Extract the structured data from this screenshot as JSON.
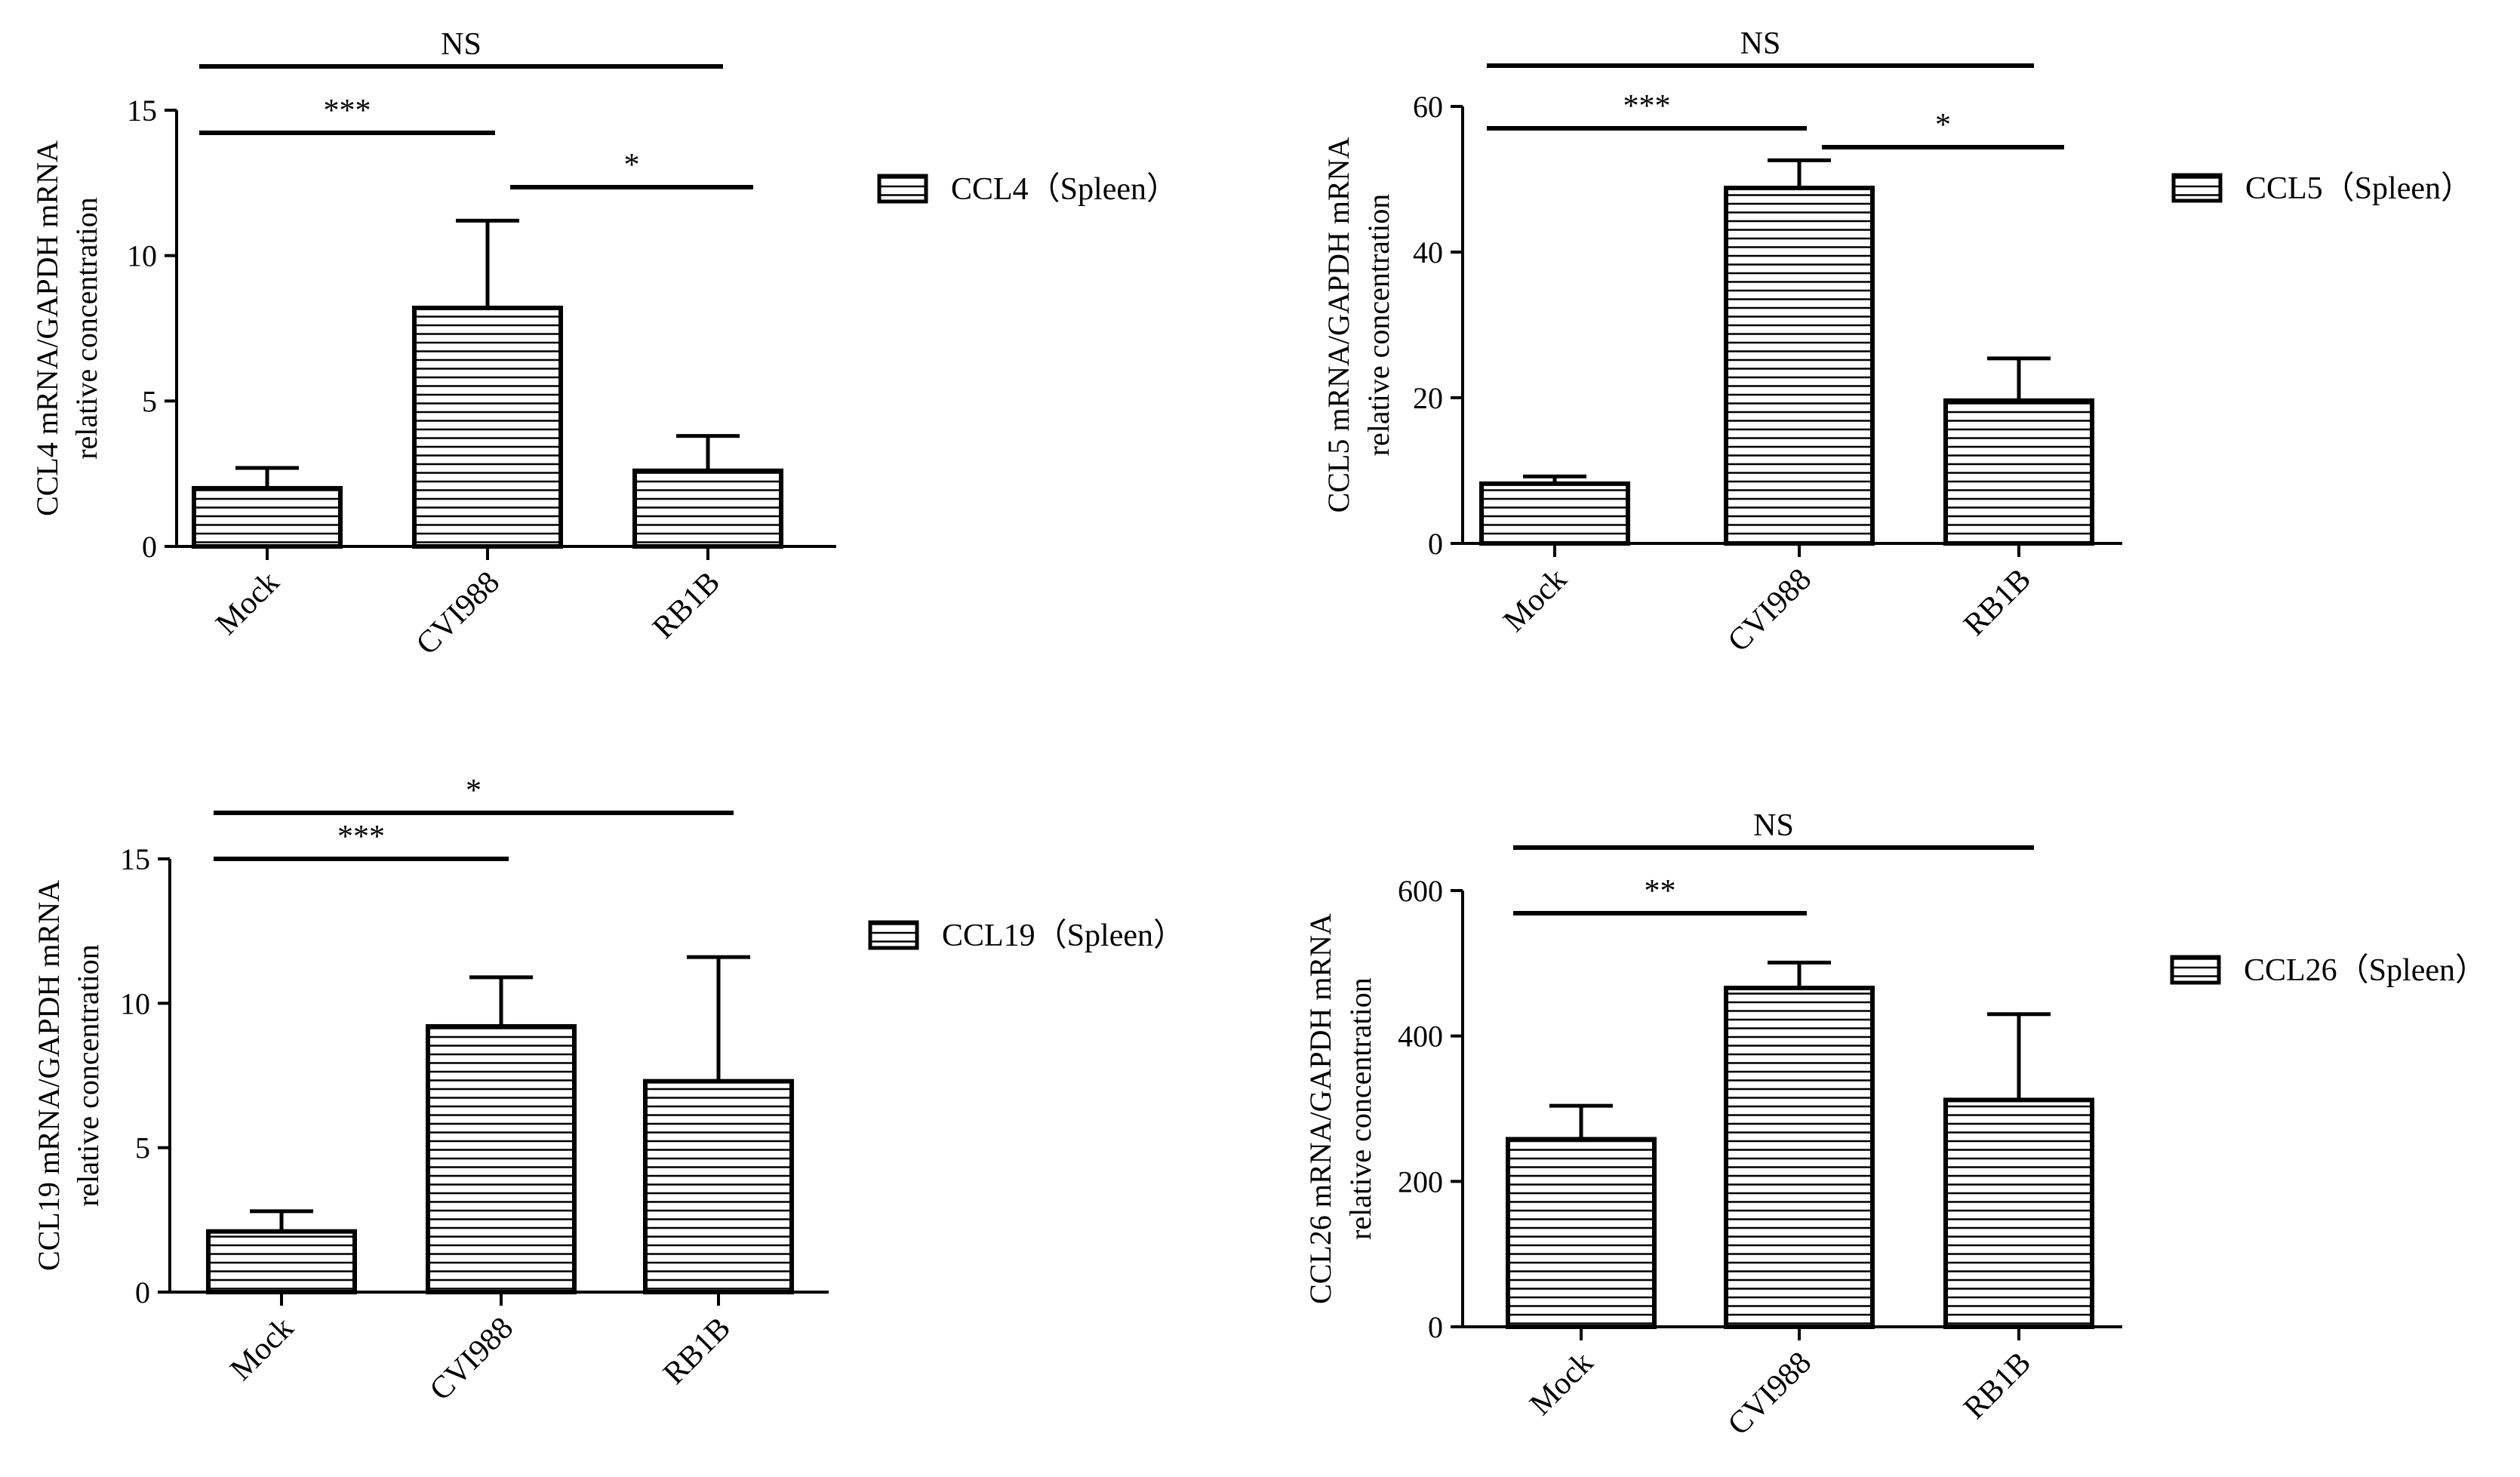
{
  "figure": {
    "hatch_color": "#000000",
    "bar_fill": "#ffffff",
    "line_color": "#000000"
  },
  "chart_data": [
    {
      "type": "bar",
      "title": "",
      "categories": [
        "Mock",
        "CVI988",
        "RB1B"
      ],
      "values": [
        2.0,
        8.2,
        2.6
      ],
      "errors": [
        0.7,
        3.0,
        1.2
      ],
      "ylabel_line1": "CCL4 mRNA/GAPDH mRNA",
      "ylabel_line2": "relative concentration",
      "xlabel": "",
      "ylim": [
        0,
        15
      ],
      "yticks": [
        0,
        5,
        10,
        15
      ],
      "legend": "CCL4（Spleen）",
      "legend_position": "right",
      "significance": [
        {
          "from": 0,
          "to": 2,
          "label": "NS",
          "level": 1
        },
        {
          "from": 0,
          "to": 1,
          "label": "***",
          "level": 0
        },
        {
          "from": 1,
          "to": 2,
          "label": "*",
          "level": -1
        }
      ]
    },
    {
      "type": "bar",
      "title": "",
      "categories": [
        "Mock",
        "CVI988",
        "RB1B"
      ],
      "values": [
        8.2,
        48.8,
        19.6
      ],
      "errors": [
        1.0,
        3.8,
        5.8
      ],
      "ylabel_line1": "CCL5 mRNA/GAPDH mRNA",
      "ylabel_line2": "relative concentration",
      "xlabel": "",
      "ylim": [
        0,
        60
      ],
      "yticks": [
        0,
        20,
        40,
        60
      ],
      "legend": "CCL5（Spleen）",
      "legend_position": "right",
      "significance": [
        {
          "from": 0,
          "to": 2,
          "label": "NS",
          "level": 1
        },
        {
          "from": 0,
          "to": 1,
          "label": "***",
          "level": 0
        },
        {
          "from": 1,
          "to": 2,
          "label": "*",
          "level": 0
        }
      ]
    },
    {
      "type": "bar",
      "title": "",
      "categories": [
        "Mock",
        "CVI988",
        "RB1B"
      ],
      "values": [
        2.1,
        9.2,
        7.3
      ],
      "errors": [
        0.7,
        1.7,
        4.3
      ],
      "ylabel_line1": "CCL19 mRNA/GAPDH mRNA",
      "ylabel_line2": "relative concentration",
      "xlabel": "",
      "ylim": [
        0,
        15
      ],
      "yticks": [
        0,
        5,
        10,
        15
      ],
      "legend": "CCL19（Spleen）",
      "legend_position": "right",
      "significance": [
        {
          "from": 0,
          "to": 2,
          "label": "*",
          "level": 1
        },
        {
          "from": 0,
          "to": 1,
          "label": "***",
          "level": 0
        }
      ]
    },
    {
      "type": "bar",
      "title": "",
      "categories": [
        "Mock",
        "CVI988",
        "RB1B"
      ],
      "values": [
        258,
        466,
        312
      ],
      "errors": [
        46,
        35,
        118
      ],
      "ylabel_line1": "CCL26 mRNA/GAPDH mRNA",
      "ylabel_line2": "relative concentration",
      "xlabel": "",
      "ylim": [
        0,
        600
      ],
      "yticks": [
        0,
        200,
        400,
        600
      ],
      "legend": "CCL26（Spleen）",
      "legend_position": "right",
      "significance": [
        {
          "from": 0,
          "to": 2,
          "label": "NS",
          "level": 1
        },
        {
          "from": 0,
          "to": 1,
          "label": "**",
          "level": 0
        }
      ]
    }
  ]
}
